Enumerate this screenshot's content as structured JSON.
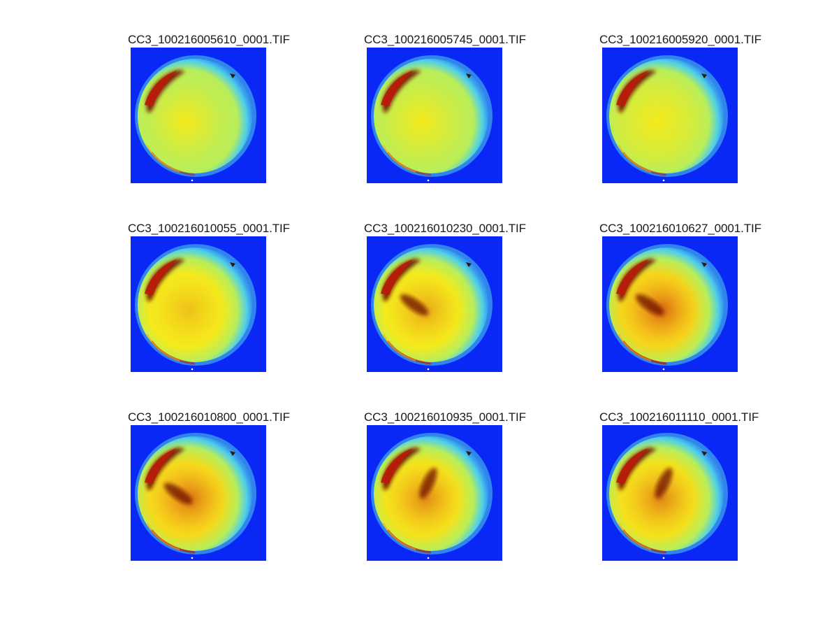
{
  "panels": [
    {
      "title": "CC3_100216005610_0001.TIF",
      "warmth": 0.08
    },
    {
      "title": "CC3_100216005745_0001.TIF",
      "warmth": 0.12
    },
    {
      "title": "CC3_100216005920_0001.TIF",
      "warmth": 0.22
    },
    {
      "title": "CC3_100216010055_0001.TIF",
      "warmth": 0.38
    },
    {
      "title": "CC3_100216010230_0001.TIF",
      "warmth": 0.48
    },
    {
      "title": "CC3_100216010627_0001.TIF",
      "warmth": 0.78
    },
    {
      "title": "CC3_100216010800_0001.TIF",
      "warmth": 0.72
    },
    {
      "title": "CC3_100216010935_0001.TIF",
      "warmth": 0.6
    },
    {
      "title": "CC3_100216011110_0001.TIF",
      "warmth": 0.62
    }
  ],
  "colors": {
    "background_blue": "#0a28f5",
    "rim_cyan": "#4fd0e8",
    "mid_green": "#b8ee5a",
    "core_yellow": "#f4ea1c",
    "warm_orange": "#f7a21a",
    "hot_red": "#b81c0a",
    "dark_red": "#6e0a04"
  }
}
